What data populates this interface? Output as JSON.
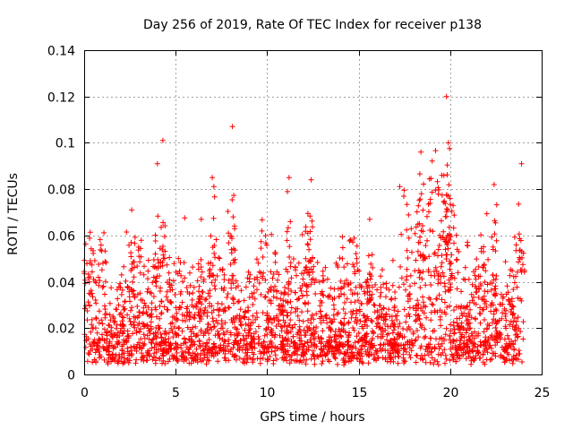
{
  "chart_data": {
    "type": "scatter",
    "title": "Day 256 of 2019, Rate Of TEC Index for receiver p138",
    "xlabel": "GPS time / hours",
    "ylabel": "ROTI / TECUs",
    "xlim": [
      0,
      25
    ],
    "ylim": [
      0,
      0.14
    ],
    "xticks": [
      0,
      5,
      10,
      15,
      20,
      25
    ],
    "xtick_labels": [
      "0",
      "5",
      "10",
      "15",
      "20",
      "25"
    ],
    "yticks": [
      0,
      0.02,
      0.04,
      0.06,
      0.08,
      0.1,
      0.12,
      0.14
    ],
    "ytick_labels": [
      "0",
      "0.02",
      "0.04",
      "0.06",
      "0.08",
      "0.1",
      "0.12",
      "0.14"
    ],
    "grid": true,
    "marker": "plus",
    "color": "#ff0000",
    "series": [
      {
        "name": "ROTI",
        "x_range": [
          0,
          24
        ],
        "typical_range": [
          0.005,
          0.03
        ],
        "notable_points": [
          {
            "x": 4.3,
            "y": 0.101
          },
          {
            "x": 8.1,
            "y": 0.107
          },
          {
            "x": 19.8,
            "y": 0.12
          },
          {
            "x": 19.9,
            "y": 0.1
          },
          {
            "x": 18.4,
            "y": 0.096
          },
          {
            "x": 4.0,
            "y": 0.091
          },
          {
            "x": 7.0,
            "y": 0.085
          },
          {
            "x": 11.2,
            "y": 0.085
          },
          {
            "x": 12.4,
            "y": 0.084
          },
          {
            "x": 23.9,
            "y": 0.091
          },
          {
            "x": 22.4,
            "y": 0.082
          },
          {
            "x": 2.6,
            "y": 0.071
          },
          {
            "x": 15.6,
            "y": 0.067
          },
          {
            "x": 6.4,
            "y": 0.067
          }
        ]
      }
    ]
  }
}
